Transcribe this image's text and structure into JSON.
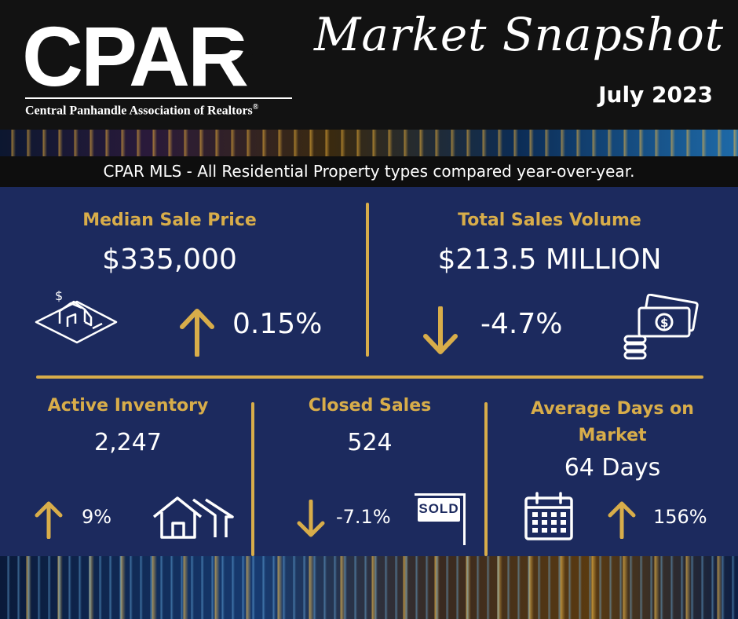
{
  "header": {
    "logo": "CPAR",
    "logo_subtitle": "Central Panhandle Association of Realtors",
    "registered_mark": "®",
    "title": "Market Snapshot",
    "date": "July 2023"
  },
  "subtitle": "CPAR MLS - All Residential Property types compared year-over-year.",
  "colors": {
    "accent": "#d8ad4a",
    "panel": "#1c2a5e",
    "header": "#121212"
  },
  "metrics": {
    "median_sale_price": {
      "label": "Median Sale Price",
      "value": "$335,000",
      "change": "0.15%",
      "direction": "up",
      "icon": "house-price-icon"
    },
    "total_sales_volume": {
      "label": "Total Sales Volume",
      "value": "$213.5 MILLION",
      "change": "-4.7%",
      "direction": "down",
      "icon": "money-icon"
    },
    "active_inventory": {
      "label": "Active Inventory",
      "value": "2,247",
      "change": "9%",
      "direction": "up",
      "icon": "houses-icon"
    },
    "closed_sales": {
      "label": "Closed Sales",
      "value": "524",
      "change": "-7.1%",
      "direction": "down",
      "icon": "sold-sign-icon",
      "sign_text": "SOLD"
    },
    "average_days_on_market": {
      "label_line1": "Average Days on",
      "label_line2": "Market",
      "value": "64 Days",
      "change": "156%",
      "direction": "up",
      "icon": "calendar-icon"
    }
  }
}
